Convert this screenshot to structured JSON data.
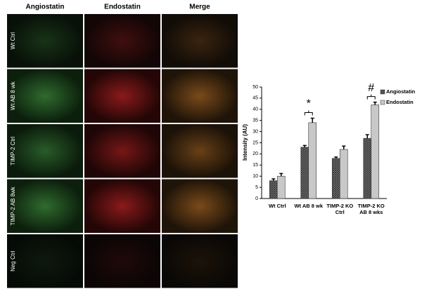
{
  "panels": {
    "columns": [
      "Angiostatin",
      "Endostatin",
      "Merge"
    ],
    "rows": [
      "Wt Ctrl",
      "Wt AB 8 wk",
      "TIMP-2 Ctrl",
      "TIMP-2 AB 8wk",
      "Neg Ctrl"
    ]
  },
  "chart_data": {
    "type": "bar",
    "y_label": "Intensity (AU)",
    "categories": [
      "Wt Ctrl",
      "Wt AB 8 wk",
      "TIMP-2 KO Ctrl",
      "TIMP-2 KO AB 8 wks"
    ],
    "series": [
      {
        "name": "Angiostatin",
        "color": "#555555",
        "values": [
          8,
          23,
          18,
          27
        ],
        "errors": [
          0.8,
          0.8,
          0.6,
          1.6
        ]
      },
      {
        "name": "Endostatin",
        "color": "#c8c8c8",
        "values": [
          10,
          34,
          22,
          42
        ],
        "errors": [
          1.2,
          2,
          1.5,
          1.2
        ]
      }
    ],
    "ylim": [
      0,
      50
    ],
    "yticks": [
      0,
      5,
      10,
      15,
      20,
      25,
      30,
      35,
      40,
      45,
      50
    ],
    "legend": "right",
    "annotations": [
      {
        "text": "*",
        "x": "Wt AB 8 wk"
      },
      {
        "text": "#",
        "x": "TIMP-2 KO AB 8 wks"
      }
    ]
  }
}
